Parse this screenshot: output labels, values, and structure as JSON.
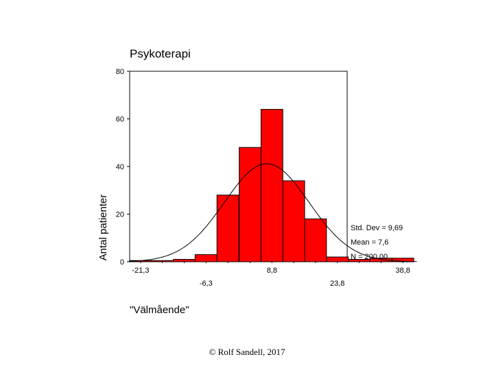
{
  "chart_data": {
    "type": "bar",
    "title": "Psykoterapi",
    "xlabel": "\"Välmående\"",
    "ylabel": "Antal patienter",
    "ylim": [
      0,
      80
    ],
    "yticks": [
      0,
      20,
      40,
      60,
      80
    ],
    "bin_width": 5,
    "bin_centers": [
      -21.3,
      -16.3,
      -11.3,
      -6.3,
      -1.3,
      3.8,
      8.8,
      13.8,
      18.8,
      23.8,
      28.8,
      33.8,
      38.8
    ],
    "values": [
      0.5,
      0.5,
      1,
      3,
      28,
      48,
      64,
      34,
      18,
      2,
      1,
      1.5,
      1.5
    ],
    "xtick_labels_upper": [
      "-21,3",
      "8,8",
      "38,8"
    ],
    "xtick_labels_lower": [
      "-6,3",
      "23,8"
    ],
    "bar_color": "#ff0000",
    "stats": {
      "std_dev": "Std. Dev = 9,69",
      "mean": "Mean = 7,6",
      "n": "N = 200,00"
    },
    "normal_curve": {
      "mean": 7.6,
      "std": 9.69,
      "n": 200
    }
  },
  "footer": {
    "copyright": "© Rolf Sandell, 2017"
  }
}
